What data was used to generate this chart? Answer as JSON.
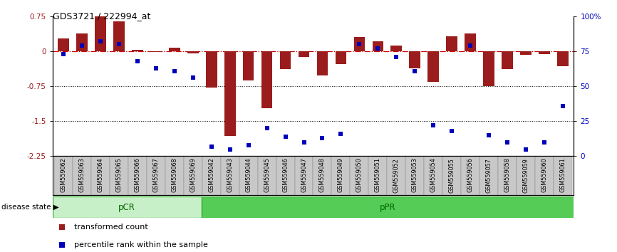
{
  "title": "GDS3721 / 222994_at",
  "samples": [
    "GSM559062",
    "GSM559063",
    "GSM559064",
    "GSM559065",
    "GSM559066",
    "GSM559067",
    "GSM559068",
    "GSM559069",
    "GSM559042",
    "GSM559043",
    "GSM559044",
    "GSM559045",
    "GSM559046",
    "GSM559047",
    "GSM559048",
    "GSM559049",
    "GSM559050",
    "GSM559051",
    "GSM559052",
    "GSM559053",
    "GSM559054",
    "GSM559055",
    "GSM559056",
    "GSM559057",
    "GSM559058",
    "GSM559059",
    "GSM559060",
    "GSM559061"
  ],
  "transformed_count": [
    0.28,
    0.38,
    0.75,
    0.65,
    0.03,
    -0.02,
    0.08,
    -0.04,
    -0.78,
    -1.82,
    -0.62,
    -1.22,
    -0.38,
    -0.12,
    -0.52,
    -0.28,
    0.3,
    0.22,
    0.13,
    -0.36,
    -0.65,
    0.33,
    0.38,
    -0.75,
    -0.38,
    -0.08,
    -0.06,
    -0.32
  ],
  "percentile_rank": [
    73,
    79,
    82,
    80,
    68,
    63,
    61,
    56,
    7,
    5,
    8,
    20,
    14,
    10,
    13,
    16,
    80,
    77,
    71,
    61,
    22,
    18,
    79,
    15,
    10,
    5,
    10,
    36
  ],
  "group_pCR_count": 8,
  "ylim_left": [
    -2.25,
    0.75
  ],
  "ylim_right": [
    0,
    100
  ],
  "yticks_left": [
    0.75,
    0.0,
    -0.75,
    -1.5,
    -2.25
  ],
  "ytick_labels_left": [
    "0.75",
    "0",
    "-0.75",
    "-1.5",
    "-2.25"
  ],
  "yticks_right": [
    100,
    75,
    50,
    25,
    0
  ],
  "ytick_labels_right": [
    "100%",
    "75",
    "50",
    "25",
    "0"
  ],
  "bar_color": "#9B1C1C",
  "dot_color": "#0000BB",
  "zero_line_color": "#CC0000",
  "pCR_color": "#C8F0C8",
  "pPR_color": "#55CC55",
  "pCR_label_color": "#006600",
  "pPR_label_color": "#006600"
}
